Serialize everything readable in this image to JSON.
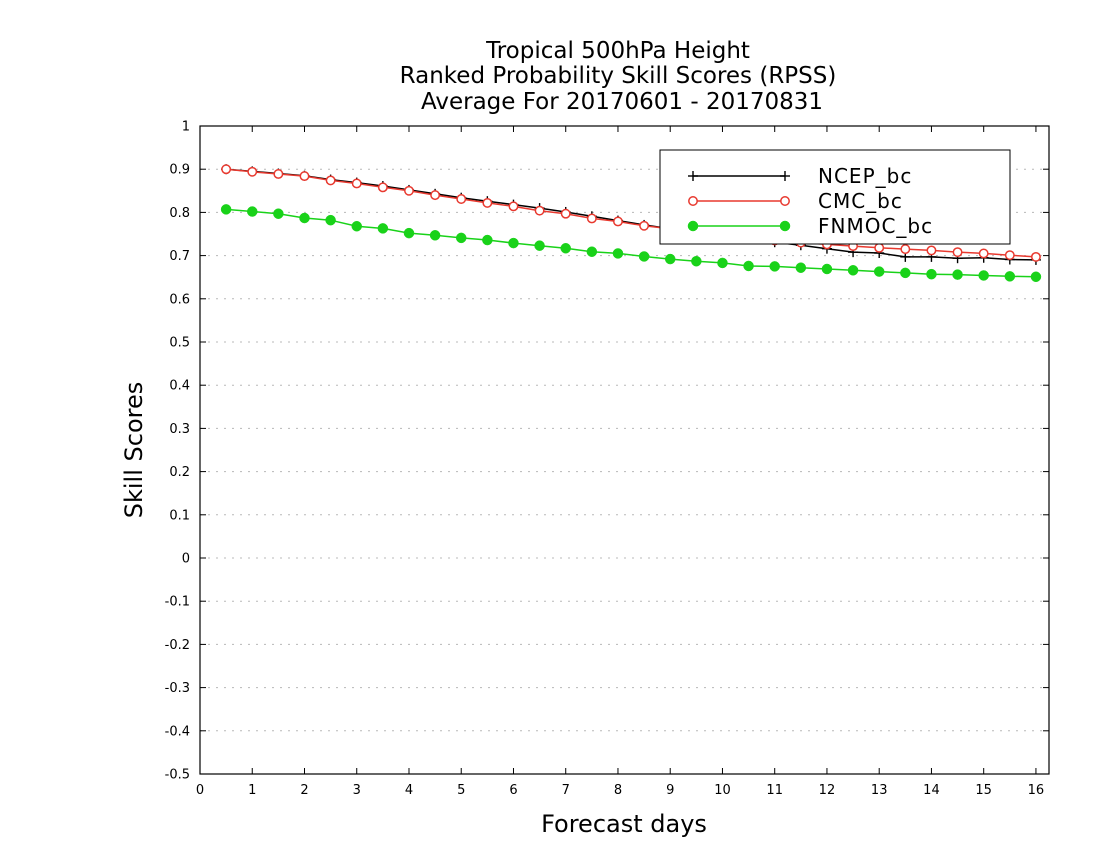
{
  "chart_data": {
    "type": "line",
    "title": [
      "Tropical 500hPa Height",
      "Ranked Probability Skill Scores (RPSS)",
      "Average For 20170601 - 20170831"
    ],
    "xlabel": "Forecast days",
    "ylabel": "Skill Scores",
    "xlim": [
      0,
      16.25
    ],
    "ylim": [
      -0.5,
      1
    ],
    "xticks": [
      0,
      1,
      2,
      3,
      4,
      5,
      6,
      7,
      8,
      9,
      10,
      11,
      12,
      13,
      14,
      15,
      16
    ],
    "yticks": [
      -0.5,
      -0.4,
      -0.3,
      -0.2,
      -0.1,
      0,
      0.1,
      0.2,
      0.3,
      0.4,
      0.5,
      0.6,
      0.7,
      0.8,
      0.9,
      1
    ],
    "ytick_labels": [
      "-0.5",
      "-0.4",
      "-0.3",
      "-0.2",
      "-0.1",
      "0",
      "0.1",
      "0.2",
      "0.3",
      "0.4",
      "0.5",
      "0.6",
      "0.7",
      "0.8",
      "0.9",
      "1"
    ],
    "grid": true,
    "legend_position": "top-right",
    "x": [
      0.5,
      1,
      1.5,
      2,
      2.5,
      3,
      3.5,
      4,
      4.5,
      5,
      5.5,
      6,
      6.5,
      7,
      7.5,
      8,
      8.5,
      9,
      9.5,
      10,
      10.5,
      11,
      11.5,
      12,
      12.5,
      13,
      13.5,
      14,
      14.5,
      15,
      15.5,
      16
    ],
    "series": [
      {
        "name": "NCEP_bc",
        "color": "#000000",
        "marker": "plus",
        "values": [
          0.9,
          0.895,
          0.89,
          0.885,
          0.876,
          0.869,
          0.861,
          0.852,
          0.843,
          0.834,
          0.826,
          0.818,
          0.81,
          0.801,
          0.791,
          0.781,
          0.771,
          0.762,
          0.754,
          0.746,
          0.738,
          0.731,
          0.724,
          0.716,
          0.708,
          0.706,
          0.697,
          0.697,
          0.694,
          0.695,
          0.691,
          0.69
        ]
      },
      {
        "name": "CMC_bc",
        "color": "#e8392f",
        "marker": "open-circle",
        "values": [
          0.9,
          0.894,
          0.889,
          0.884,
          0.874,
          0.867,
          0.858,
          0.85,
          0.84,
          0.831,
          0.822,
          0.814,
          0.804,
          0.797,
          0.786,
          0.779,
          0.769,
          0.762,
          0.754,
          0.746,
          0.74,
          0.735,
          0.73,
          0.726,
          0.722,
          0.718,
          0.715,
          0.712,
          0.708,
          0.705,
          0.701,
          0.697
        ]
      },
      {
        "name": "FNMOC_bc",
        "color": "#19d219",
        "marker": "filled-circle",
        "values": [
          0.807,
          0.802,
          0.797,
          0.787,
          0.782,
          0.768,
          0.763,
          0.752,
          0.747,
          0.741,
          0.736,
          0.729,
          0.723,
          0.717,
          0.709,
          0.705,
          0.698,
          0.692,
          0.687,
          0.683,
          0.676,
          0.675,
          0.672,
          0.669,
          0.666,
          0.663,
          0.66,
          0.657,
          0.656,
          0.654,
          0.652,
          0.651
        ]
      }
    ]
  }
}
